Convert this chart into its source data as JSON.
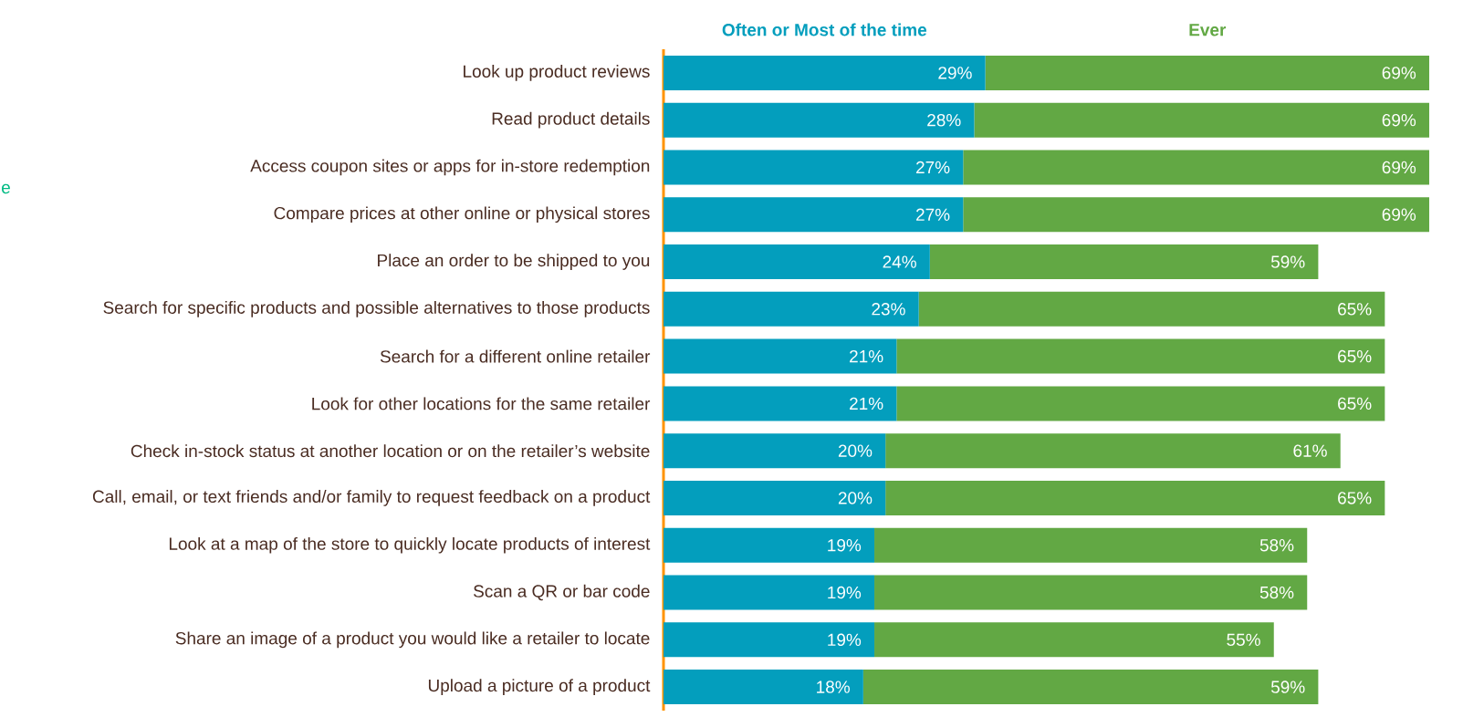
{
  "chart_data": {
    "type": "bar",
    "orientation": "horizontal",
    "stacked": true,
    "legend": "top",
    "tick_labels": "y",
    "categories": [
      "Look up product reviews",
      "Read product details",
      "Access coupon sites or apps for in-store redemption",
      "Compare prices at other online or physical stores",
      "Place an order to be shipped to you",
      "Search for specific products and possible alternatives to those products",
      "Search for a different online retailer",
      "Look for other locations for the same retailer",
      "Check in-stock status at another location or on the retailer’s website",
      "Call, email, or text friends and/or family to request feedback on a product",
      "Look at a map of the store to quickly locate products of interest",
      "Scan a QR or bar code",
      "Share an image of a product you would like a retailer to locate",
      "Upload a picture of a product"
    ],
    "series": [
      {
        "name": "Often or Most of the time",
        "color": "#039ebd",
        "values": [
          29,
          28,
          27,
          27,
          24,
          23,
          21,
          21,
          20,
          20,
          19,
          19,
          19,
          18
        ],
        "value_labels": [
          "29%",
          "28%",
          "27%",
          "27%",
          "24%",
          "23%",
          "21%",
          "21%",
          "20%",
          "20%",
          "19%",
          "19%",
          "19%",
          "18%"
        ]
      },
      {
        "name": "Ever",
        "color": "#62a844",
        "values": [
          40,
          41,
          42,
          42,
          35,
          42,
          44,
          44,
          41,
          45,
          39,
          39,
          36,
          41
        ]
      }
    ],
    "totals": [
      "69%",
      "69%",
      "69%",
      "69%",
      "59%",
      "65%",
      "65%",
      "65%",
      "61%",
      "65%",
      "58%",
      "58%",
      "55%",
      "59%"
    ],
    "annotations": [
      "e"
    ]
  }
}
